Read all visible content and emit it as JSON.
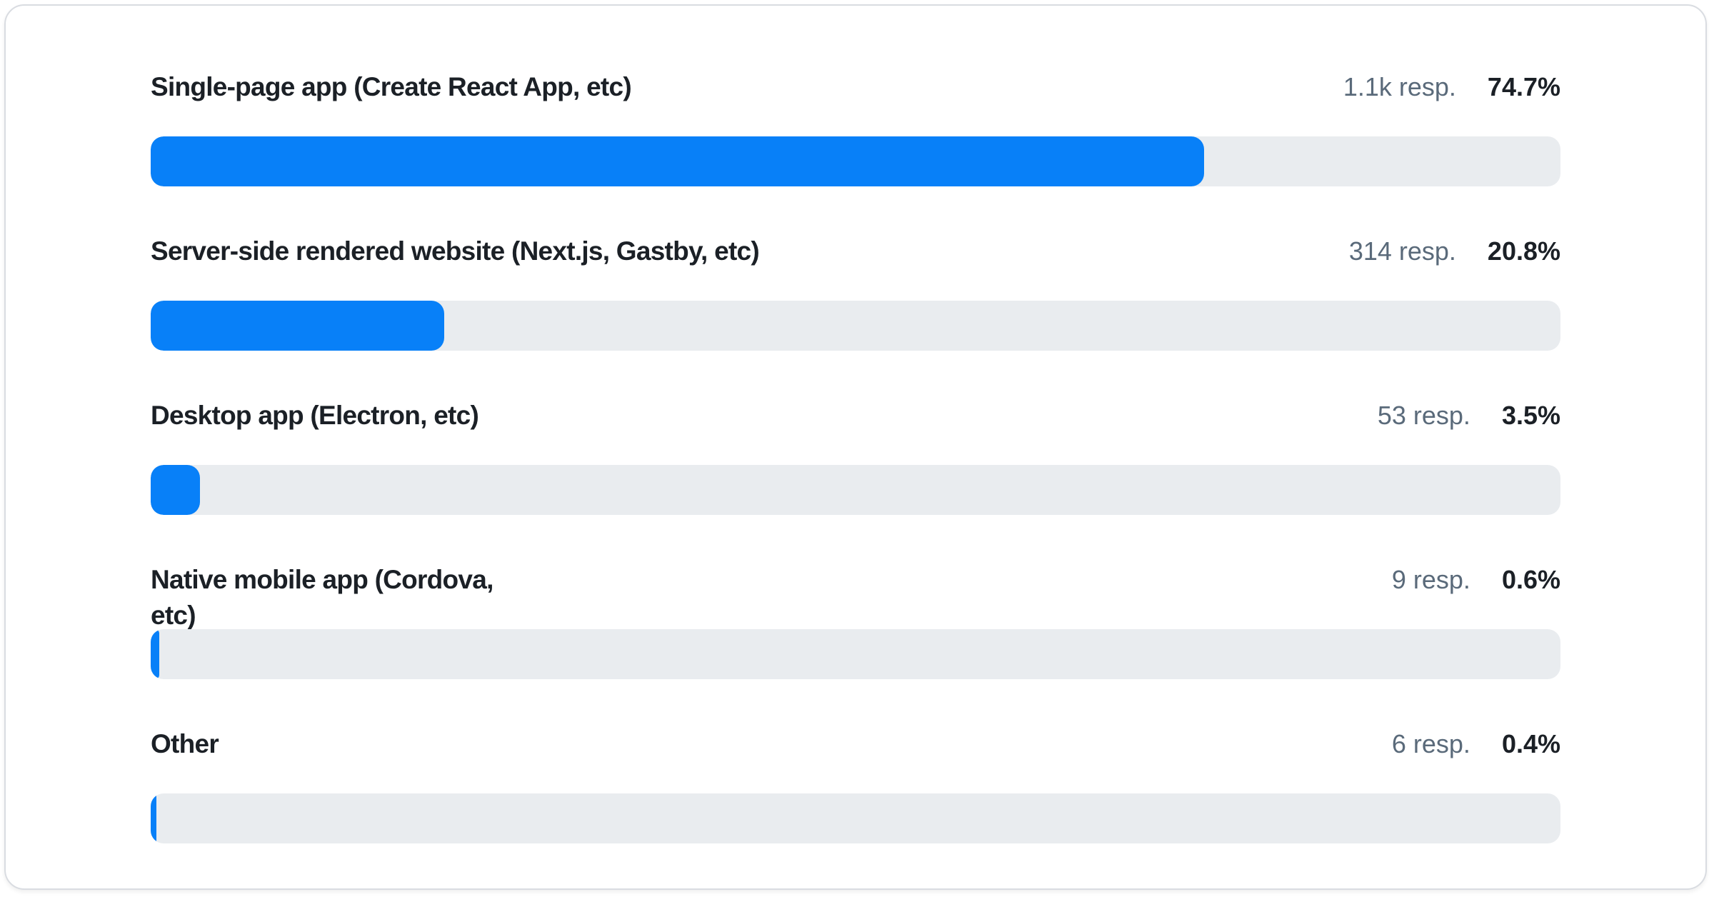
{
  "colors": {
    "bar_fill": "#0880f8",
    "bar_track": "#e9ecef",
    "label_text": "#1b2026",
    "response_text": "#5a6a7a",
    "percent_text": "#1b2026",
    "card_border": "#d9dce1",
    "card_background": "#ffffff"
  },
  "chart_data": {
    "type": "bar",
    "orientation": "horizontal",
    "grid": false,
    "legend": false,
    "xlim": [
      0,
      100
    ],
    "unit": "percent",
    "categories": [
      "Single-page app (Create React App, etc)",
      "Server-side rendered website (Next.js, Gastby, etc)",
      "Desktop app (Electron, etc)",
      "Native mobile app (Cordova,\netc)",
      "Other"
    ],
    "values": [
      74.7,
      20.8,
      3.5,
      0.6,
      0.4
    ],
    "value_labels": [
      "74.7%",
      "20.8%",
      "3.5%",
      "0.6%",
      "0.4%"
    ],
    "response_labels": [
      "1.1k resp.",
      "314 resp.",
      "53 resp.",
      "9 resp.",
      "6 resp."
    ]
  }
}
